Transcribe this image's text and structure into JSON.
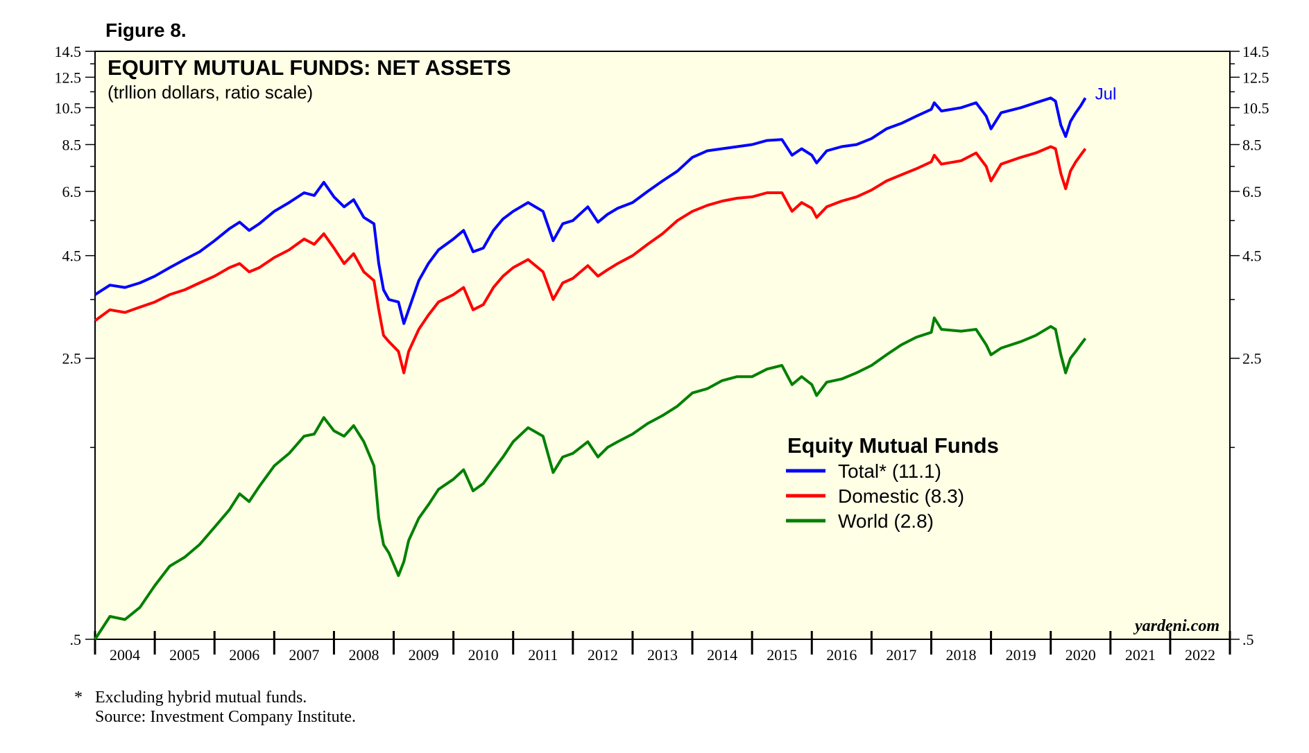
{
  "figure_label": "Figure 8.",
  "footnote": "*   Excluding hybrid mutual funds.",
  "source": "Source: Investment Company Institute.",
  "watermark": "yardeni.com",
  "colors": {
    "background": "#ffffe6",
    "total": "#0000ff",
    "domestic": "#ff0000",
    "world": "#008000",
    "axis": "#000000"
  },
  "chart_data": {
    "type": "line",
    "title": "EQUITY MUTUAL FUNDS: NET ASSETS",
    "subtitle": "(trllion dollars, ratio scale)",
    "scale": "log",
    "ylim": [
      0.5,
      14.5
    ],
    "xlim": [
      2004.0,
      2023.0
    ],
    "y_ticks": [
      ".5",
      "2.5",
      "4.5",
      "6.5",
      "8.5",
      "10.5",
      "12.5",
      "14.5"
    ],
    "y_tick_values": [
      0.5,
      2.5,
      4.5,
      6.5,
      8.5,
      10.5,
      12.5,
      14.5
    ],
    "y_minor_ticks": [
      1.5,
      3.5,
      5.5,
      7.5,
      9.5,
      11.5,
      13.5
    ],
    "x_labels": [
      "2004",
      "2005",
      "2006",
      "2007",
      "2008",
      "2009",
      "2010",
      "2011",
      "2012",
      "2013",
      "2014",
      "2015",
      "2016",
      "2017",
      "2018",
      "2019",
      "2020",
      "2021",
      "2022"
    ],
    "last_point_label": "Jul",
    "legend": {
      "title": "Equity Mutual Funds",
      "entries": [
        "Total* (11.1)",
        "Domestic (8.3)",
        "World  (2.8)"
      ],
      "placement": "right-center"
    },
    "series": [
      {
        "name": "Total*",
        "color": "#0000ff",
        "points": [
          [
            2004.0,
            3.6
          ],
          [
            2004.25,
            3.8
          ],
          [
            2004.5,
            3.75
          ],
          [
            2004.75,
            3.85
          ],
          [
            2005.0,
            4.0
          ],
          [
            2005.25,
            4.2
          ],
          [
            2005.5,
            4.4
          ],
          [
            2005.75,
            4.6
          ],
          [
            2006.0,
            4.9
          ],
          [
            2006.25,
            5.25
          ],
          [
            2006.42,
            5.45
          ],
          [
            2006.58,
            5.2
          ],
          [
            2006.75,
            5.4
          ],
          [
            2007.0,
            5.8
          ],
          [
            2007.25,
            6.1
          ],
          [
            2007.5,
            6.45
          ],
          [
            2007.67,
            6.35
          ],
          [
            2007.83,
            6.85
          ],
          [
            2008.0,
            6.3
          ],
          [
            2008.17,
            5.95
          ],
          [
            2008.33,
            6.2
          ],
          [
            2008.5,
            5.6
          ],
          [
            2008.67,
            5.4
          ],
          [
            2008.75,
            4.3
          ],
          [
            2008.83,
            3.7
          ],
          [
            2008.92,
            3.5
          ],
          [
            2009.08,
            3.45
          ],
          [
            2009.17,
            3.05
          ],
          [
            2009.25,
            3.3
          ],
          [
            2009.42,
            3.9
          ],
          [
            2009.58,
            4.3
          ],
          [
            2009.75,
            4.65
          ],
          [
            2010.0,
            4.95
          ],
          [
            2010.17,
            5.2
          ],
          [
            2010.33,
            4.6
          ],
          [
            2010.5,
            4.7
          ],
          [
            2010.67,
            5.2
          ],
          [
            2010.83,
            5.55
          ],
          [
            2011.0,
            5.8
          ],
          [
            2011.25,
            6.1
          ],
          [
            2011.5,
            5.8
          ],
          [
            2011.67,
            4.9
          ],
          [
            2011.83,
            5.4
          ],
          [
            2012.0,
            5.5
          ],
          [
            2012.25,
            5.95
          ],
          [
            2012.42,
            5.45
          ],
          [
            2012.58,
            5.7
          ],
          [
            2012.75,
            5.9
          ],
          [
            2013.0,
            6.1
          ],
          [
            2013.25,
            6.5
          ],
          [
            2013.5,
            6.9
          ],
          [
            2013.75,
            7.3
          ],
          [
            2014.0,
            7.9
          ],
          [
            2014.25,
            8.2
          ],
          [
            2014.5,
            8.3
          ],
          [
            2014.75,
            8.4
          ],
          [
            2015.0,
            8.5
          ],
          [
            2015.25,
            8.7
          ],
          [
            2015.5,
            8.75
          ],
          [
            2015.67,
            8.0
          ],
          [
            2015.83,
            8.3
          ],
          [
            2016.0,
            8.0
          ],
          [
            2016.08,
            7.65
          ],
          [
            2016.25,
            8.2
          ],
          [
            2016.5,
            8.4
          ],
          [
            2016.75,
            8.5
          ],
          [
            2017.0,
            8.8
          ],
          [
            2017.25,
            9.3
          ],
          [
            2017.5,
            9.6
          ],
          [
            2017.75,
            10.0
          ],
          [
            2018.0,
            10.4
          ],
          [
            2018.05,
            10.8
          ],
          [
            2018.17,
            10.3
          ],
          [
            2018.5,
            10.5
          ],
          [
            2018.75,
            10.8
          ],
          [
            2018.92,
            10.0
          ],
          [
            2019.0,
            9.3
          ],
          [
            2019.17,
            10.2
          ],
          [
            2019.5,
            10.5
          ],
          [
            2019.75,
            10.8
          ],
          [
            2020.0,
            11.1
          ],
          [
            2020.08,
            10.9
          ],
          [
            2020.17,
            9.5
          ],
          [
            2020.25,
            8.9
          ],
          [
            2020.33,
            9.7
          ],
          [
            2020.42,
            10.2
          ],
          [
            2020.5,
            10.6
          ],
          [
            2020.58,
            11.1
          ]
        ]
      },
      {
        "name": "Domestic",
        "color": "#ff0000",
        "points": [
          [
            2004.0,
            3.1
          ],
          [
            2004.25,
            3.3
          ],
          [
            2004.5,
            3.25
          ],
          [
            2004.75,
            3.35
          ],
          [
            2005.0,
            3.45
          ],
          [
            2005.25,
            3.6
          ],
          [
            2005.5,
            3.7
          ],
          [
            2005.75,
            3.85
          ],
          [
            2006.0,
            4.0
          ],
          [
            2006.25,
            4.2
          ],
          [
            2006.42,
            4.3
          ],
          [
            2006.58,
            4.1
          ],
          [
            2006.75,
            4.2
          ],
          [
            2007.0,
            4.45
          ],
          [
            2007.25,
            4.65
          ],
          [
            2007.5,
            4.95
          ],
          [
            2007.67,
            4.8
          ],
          [
            2007.83,
            5.1
          ],
          [
            2008.0,
            4.7
          ],
          [
            2008.17,
            4.3
          ],
          [
            2008.33,
            4.55
          ],
          [
            2008.5,
            4.1
          ],
          [
            2008.67,
            3.9
          ],
          [
            2008.75,
            3.3
          ],
          [
            2008.83,
            2.85
          ],
          [
            2008.92,
            2.75
          ],
          [
            2009.08,
            2.6
          ],
          [
            2009.17,
            2.3
          ],
          [
            2009.25,
            2.6
          ],
          [
            2009.42,
            2.95
          ],
          [
            2009.58,
            3.2
          ],
          [
            2009.75,
            3.45
          ],
          [
            2010.0,
            3.6
          ],
          [
            2010.17,
            3.75
          ],
          [
            2010.33,
            3.3
          ],
          [
            2010.5,
            3.4
          ],
          [
            2010.67,
            3.75
          ],
          [
            2010.83,
            4.0
          ],
          [
            2011.0,
            4.2
          ],
          [
            2011.25,
            4.4
          ],
          [
            2011.5,
            4.1
          ],
          [
            2011.67,
            3.5
          ],
          [
            2011.83,
            3.85
          ],
          [
            2012.0,
            3.95
          ],
          [
            2012.25,
            4.25
          ],
          [
            2012.42,
            4.0
          ],
          [
            2012.58,
            4.15
          ],
          [
            2012.75,
            4.3
          ],
          [
            2013.0,
            4.5
          ],
          [
            2013.25,
            4.8
          ],
          [
            2013.5,
            5.1
          ],
          [
            2013.75,
            5.5
          ],
          [
            2014.0,
            5.8
          ],
          [
            2014.25,
            6.0
          ],
          [
            2014.5,
            6.15
          ],
          [
            2014.75,
            6.25
          ],
          [
            2015.0,
            6.3
          ],
          [
            2015.25,
            6.45
          ],
          [
            2015.5,
            6.45
          ],
          [
            2015.67,
            5.8
          ],
          [
            2015.83,
            6.1
          ],
          [
            2016.0,
            5.9
          ],
          [
            2016.08,
            5.6
          ],
          [
            2016.25,
            5.95
          ],
          [
            2016.5,
            6.15
          ],
          [
            2016.75,
            6.3
          ],
          [
            2017.0,
            6.55
          ],
          [
            2017.25,
            6.9
          ],
          [
            2017.5,
            7.15
          ],
          [
            2017.75,
            7.4
          ],
          [
            2018.0,
            7.7
          ],
          [
            2018.05,
            8.0
          ],
          [
            2018.17,
            7.6
          ],
          [
            2018.5,
            7.75
          ],
          [
            2018.75,
            8.1
          ],
          [
            2018.92,
            7.5
          ],
          [
            2019.0,
            6.9
          ],
          [
            2019.17,
            7.6
          ],
          [
            2019.5,
            7.9
          ],
          [
            2019.75,
            8.1
          ],
          [
            2020.0,
            8.4
          ],
          [
            2020.08,
            8.3
          ],
          [
            2020.17,
            7.2
          ],
          [
            2020.25,
            6.6
          ],
          [
            2020.33,
            7.3
          ],
          [
            2020.42,
            7.7
          ],
          [
            2020.5,
            8.0
          ],
          [
            2020.58,
            8.3
          ]
        ]
      },
      {
        "name": "World",
        "color": "#008000",
        "points": [
          [
            2004.0,
            0.5
          ],
          [
            2004.25,
            0.57
          ],
          [
            2004.5,
            0.56
          ],
          [
            2004.75,
            0.6
          ],
          [
            2005.0,
            0.68
          ],
          [
            2005.25,
            0.76
          ],
          [
            2005.5,
            0.8
          ],
          [
            2005.75,
            0.86
          ],
          [
            2006.0,
            0.95
          ],
          [
            2006.25,
            1.05
          ],
          [
            2006.42,
            1.15
          ],
          [
            2006.58,
            1.1
          ],
          [
            2006.75,
            1.2
          ],
          [
            2007.0,
            1.35
          ],
          [
            2007.25,
            1.45
          ],
          [
            2007.5,
            1.6
          ],
          [
            2007.67,
            1.62
          ],
          [
            2007.83,
            1.78
          ],
          [
            2008.0,
            1.65
          ],
          [
            2008.17,
            1.6
          ],
          [
            2008.33,
            1.7
          ],
          [
            2008.5,
            1.55
          ],
          [
            2008.67,
            1.35
          ],
          [
            2008.75,
            1.0
          ],
          [
            2008.83,
            0.86
          ],
          [
            2008.92,
            0.82
          ],
          [
            2009.08,
            0.72
          ],
          [
            2009.17,
            0.78
          ],
          [
            2009.25,
            0.88
          ],
          [
            2009.42,
            1.0
          ],
          [
            2009.58,
            1.08
          ],
          [
            2009.75,
            1.18
          ],
          [
            2010.0,
            1.25
          ],
          [
            2010.17,
            1.32
          ],
          [
            2010.33,
            1.17
          ],
          [
            2010.5,
            1.22
          ],
          [
            2010.67,
            1.32
          ],
          [
            2010.83,
            1.42
          ],
          [
            2011.0,
            1.55
          ],
          [
            2011.25,
            1.68
          ],
          [
            2011.5,
            1.6
          ],
          [
            2011.67,
            1.3
          ],
          [
            2011.83,
            1.42
          ],
          [
            2012.0,
            1.45
          ],
          [
            2012.25,
            1.55
          ],
          [
            2012.42,
            1.42
          ],
          [
            2012.58,
            1.5
          ],
          [
            2012.75,
            1.55
          ],
          [
            2013.0,
            1.62
          ],
          [
            2013.25,
            1.72
          ],
          [
            2013.5,
            1.8
          ],
          [
            2013.75,
            1.9
          ],
          [
            2014.0,
            2.05
          ],
          [
            2014.25,
            2.1
          ],
          [
            2014.5,
            2.2
          ],
          [
            2014.75,
            2.25
          ],
          [
            2015.0,
            2.25
          ],
          [
            2015.25,
            2.35
          ],
          [
            2015.5,
            2.4
          ],
          [
            2015.67,
            2.15
          ],
          [
            2015.83,
            2.25
          ],
          [
            2016.0,
            2.15
          ],
          [
            2016.08,
            2.02
          ],
          [
            2016.25,
            2.18
          ],
          [
            2016.5,
            2.22
          ],
          [
            2016.75,
            2.3
          ],
          [
            2017.0,
            2.4
          ],
          [
            2017.25,
            2.55
          ],
          [
            2017.5,
            2.7
          ],
          [
            2017.75,
            2.82
          ],
          [
            2018.0,
            2.9
          ],
          [
            2018.05,
            3.15
          ],
          [
            2018.17,
            2.95
          ],
          [
            2018.5,
            2.92
          ],
          [
            2018.75,
            2.95
          ],
          [
            2018.92,
            2.7
          ],
          [
            2019.0,
            2.55
          ],
          [
            2019.17,
            2.65
          ],
          [
            2019.5,
            2.75
          ],
          [
            2019.75,
            2.85
          ],
          [
            2020.0,
            3.0
          ],
          [
            2020.08,
            2.95
          ],
          [
            2020.17,
            2.55
          ],
          [
            2020.25,
            2.3
          ],
          [
            2020.33,
            2.5
          ],
          [
            2020.42,
            2.6
          ],
          [
            2020.5,
            2.7
          ],
          [
            2020.58,
            2.8
          ]
        ]
      }
    ]
  }
}
